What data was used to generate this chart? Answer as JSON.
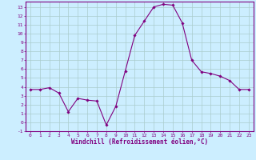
{
  "y": [
    3.7,
    3.7,
    3.9,
    3.3,
    1.2,
    2.7,
    2.5,
    2.4,
    -0.3,
    1.8,
    5.8,
    9.8,
    11.4,
    13.0,
    13.3,
    13.2,
    11.2,
    7.0,
    5.7,
    5.5,
    5.2,
    4.7,
    3.7,
    3.7
  ],
  "ylim": [
    -1,
    13.6
  ],
  "yticks": [
    -1,
    0,
    1,
    2,
    3,
    4,
    5,
    6,
    7,
    8,
    9,
    10,
    11,
    12,
    13
  ],
  "xlabel": "Windchill (Refroidissement éolien,°C)",
  "line_color": "#800080",
  "marker": "D",
  "marker_size": 1.8,
  "bg_color": "#cceeff",
  "grid_color": "#aacccc",
  "axis_color": "#800080",
  "tick_color": "#800080",
  "label_color": "#800080"
}
